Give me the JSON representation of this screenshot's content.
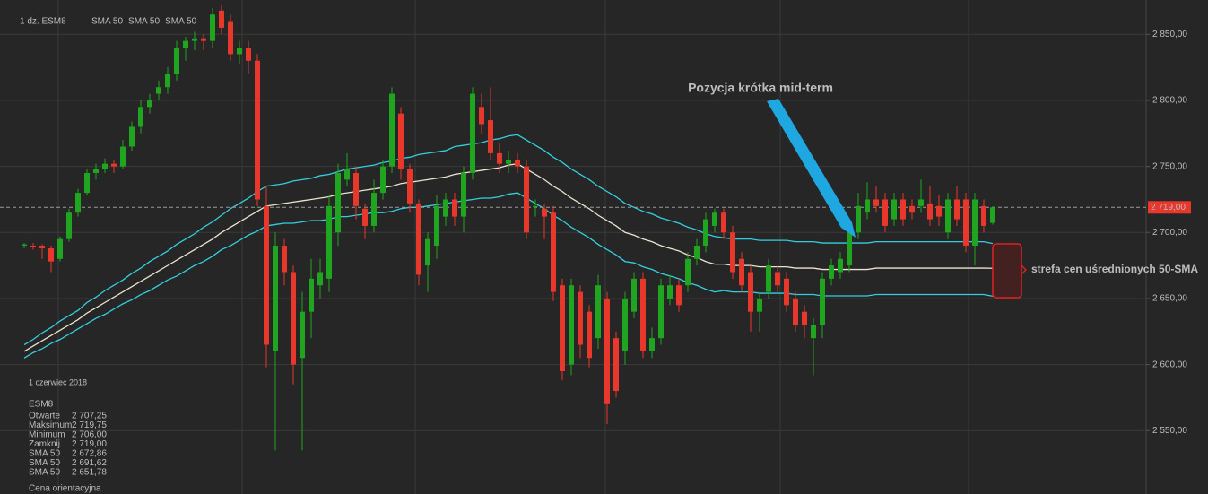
{
  "chart_data": {
    "type": "candlestick",
    "header": "1 dz.  ESM8",
    "categories": [
      null,
      null,
      null,
      null,
      null,
      null,
      null,
      null,
      null,
      null,
      null,
      null,
      null,
      null,
      null,
      null,
      null,
      null,
      null,
      null,
      null,
      null,
      null,
      null,
      null,
      null,
      null,
      null,
      null,
      null,
      null,
      null,
      null,
      null,
      null,
      null,
      null,
      null,
      null,
      null,
      null,
      null,
      null,
      null,
      null,
      null,
      null,
      null,
      null,
      null,
      null,
      null,
      null,
      null,
      null,
      null,
      null,
      null,
      null,
      null,
      null,
      null,
      null,
      null,
      null,
      null,
      null,
      null,
      null,
      null,
      null,
      null,
      null,
      null,
      null,
      null,
      null,
      null,
      null,
      null,
      null,
      null,
      null,
      null,
      null,
      null,
      null,
      null,
      null,
      null,
      null,
      null,
      null,
      null,
      null,
      null,
      null,
      null,
      null,
      null,
      null,
      null,
      null,
      null,
      null,
      null,
      null,
      null,
      null
    ],
    "open": [
      2690,
      2690,
      2690,
      2688,
      2680,
      2695,
      2715,
      2730,
      2745,
      2748,
      2752,
      2750,
      2765,
      2780,
      2795,
      2805,
      2810,
      2820,
      2840,
      2845,
      2847,
      2845,
      2868,
      2860,
      2835,
      2840,
      2830,
      2720,
      2610,
      2690,
      2670,
      2605,
      2640,
      2660,
      2665,
      2700,
      2740,
      2745,
      2718,
      2705,
      2730,
      2750,
      2790,
      2748,
      2722,
      2675,
      2690,
      2712,
      2725,
      2712,
      2745,
      2795,
      2785,
      2760,
      2752,
      2755,
      2750,
      2720,
      2718,
      2715,
      2660,
      2600,
      2655,
      2640,
      2620,
      2650,
      2620,
      2610,
      2640,
      2665,
      2610,
      2620,
      2650,
      2660,
      2660,
      2680,
      2690,
      2705,
      2715,
      2700,
      2680,
      2670,
      2640,
      2655,
      2670,
      2665,
      2650,
      2640,
      2620,
      2630,
      2665,
      2670,
      2675,
      2700,
      2715,
      2725,
      2725,
      2710,
      2725,
      2720,
      2720,
      2722,
      2720,
      2700,
      2725,
      2725,
      2690,
      2720,
      2707.25
    ],
    "high": [
      2692,
      2692,
      2691,
      2690,
      2697,
      2718,
      2733,
      2748,
      2752,
      2756,
      2755,
      2770,
      2784,
      2800,
      2805,
      2815,
      2825,
      2845,
      2848,
      2852,
      2850,
      2870,
      2872,
      2865,
      2845,
      2845,
      2835,
      2735,
      2700,
      2695,
      2675,
      2655,
      2680,
      2680,
      2728,
      2752,
      2760,
      2750,
      2722,
      2740,
      2755,
      2810,
      2795,
      2752,
      2725,
      2700,
      2728,
      2730,
      2730,
      2750,
      2810,
      2805,
      2810,
      2768,
      2762,
      2760,
      2755,
      2725,
      2722,
      2720,
      2665,
      2665,
      2660,
      2645,
      2668,
      2655,
      2625,
      2655,
      2670,
      2670,
      2628,
      2665,
      2668,
      2665,
      2685,
      2695,
      2715,
      2718,
      2718,
      2705,
      2685,
      2675,
      2655,
      2680,
      2675,
      2670,
      2655,
      2645,
      2635,
      2670,
      2680,
      2685,
      2705,
      2730,
      2738,
      2735,
      2730,
      2730,
      2730,
      2725,
      2740,
      2735,
      2728,
      2730,
      2735,
      2730,
      2730,
      2725,
      2719.75
    ],
    "low": [
      2688,
      2687,
      2680,
      2670,
      2678,
      2693,
      2712,
      2728,
      2740,
      2745,
      2745,
      2748,
      2762,
      2775,
      2790,
      2800,
      2805,
      2815,
      2830,
      2838,
      2838,
      2840,
      2850,
      2830,
      2828,
      2820,
      2720,
      2598,
      2535,
      2660,
      2585,
      2535,
      2620,
      2650,
      2655,
      2690,
      2735,
      2710,
      2695,
      2700,
      2725,
      2745,
      2740,
      2715,
      2660,
      2655,
      2680,
      2705,
      2705,
      2700,
      2740,
      2775,
      2755,
      2745,
      2745,
      2745,
      2695,
      2712,
      2695,
      2648,
      2588,
      2592,
      2605,
      2598,
      2612,
      2555,
      2575,
      2600,
      2635,
      2605,
      2605,
      2615,
      2645,
      2640,
      2655,
      2675,
      2685,
      2700,
      2695,
      2665,
      2655,
      2625,
      2625,
      2650,
      2655,
      2640,
      2625,
      2620,
      2592,
      2620,
      2660,
      2665,
      2670,
      2695,
      2710,
      2715,
      2700,
      2705,
      2705,
      2710,
      2715,
      2705,
      2705,
      2695,
      2705,
      2685,
      2675,
      2700,
      2706
    ],
    "close": [
      2691,
      2689,
      2688,
      2678,
      2695,
      2715,
      2730,
      2745,
      2748,
      2752,
      2750,
      2765,
      2780,
      2795,
      2800,
      2810,
      2820,
      2840,
      2845,
      2847,
      2845,
      2865,
      2855,
      2835,
      2840,
      2830,
      2725,
      2615,
      2690,
      2670,
      2600,
      2640,
      2665,
      2670,
      2720,
      2745,
      2748,
      2720,
      2705,
      2730,
      2750,
      2805,
      2748,
      2722,
      2668,
      2695,
      2720,
      2725,
      2712,
      2745,
      2805,
      2782,
      2760,
      2752,
      2755,
      2750,
      2700,
      2720,
      2712,
      2655,
      2595,
      2660,
      2615,
      2605,
      2660,
      2570,
      2580,
      2650,
      2665,
      2610,
      2620,
      2660,
      2660,
      2645,
      2680,
      2690,
      2710,
      2715,
      2700,
      2670,
      2660,
      2640,
      2650,
      2675,
      2660,
      2645,
      2630,
      2630,
      2630,
      2665,
      2675,
      2680,
      2700,
      2720,
      2725,
      2720,
      2705,
      2725,
      2710,
      2715,
      2725,
      2710,
      2712,
      2725,
      2710,
      2690,
      2725,
      2705,
      2719
    ],
    "color_up": "#1fa51f",
    "color_down": "#e8372b",
    "series": [
      {
        "name": "SMA 50",
        "color": "#ece3cf",
        "values": [
          2610,
          2614,
          2618,
          2622,
          2626,
          2630,
          2634,
          2639,
          2643,
          2647,
          2651,
          2655,
          2659,
          2663,
          2667,
          2671,
          2675,
          2679,
          2683,
          2687,
          2691,
          2695,
          2700,
          2704,
          2708,
          2712,
          2716,
          2720,
          2721,
          2722,
          2723,
          2724,
          2725,
          2726,
          2727,
          2729,
          2730,
          2731,
          2732,
          2733,
          2734,
          2735,
          2737,
          2738,
          2739,
          2740,
          2741,
          2742,
          2744,
          2745,
          2746,
          2747,
          2748,
          2749,
          2751,
          2752,
          2748,
          2744,
          2740,
          2735,
          2731,
          2726,
          2722,
          2718,
          2713,
          2709,
          2705,
          2700,
          2698,
          2695,
          2693,
          2690,
          2688,
          2686,
          2683,
          2681,
          2678,
          2676,
          2676,
          2675,
          2675,
          2675,
          2674,
          2674,
          2674,
          2674,
          2673,
          2673,
          2673,
          2672,
          2672,
          2672,
          2672,
          2672,
          2672,
          2673,
          2673,
          2673,
          2673,
          2673,
          2673,
          2673,
          2673,
          2673,
          2673,
          2673,
          2673,
          2673,
          2672.86
        ]
      },
      {
        "name": "SMA 50",
        "color": "#33cfe0",
        "values": [
          2615,
          2619,
          2624,
          2628,
          2633,
          2637,
          2641,
          2647,
          2651,
          2656,
          2660,
          2664,
          2669,
          2673,
          2678,
          2682,
          2686,
          2691,
          2695,
          2699,
          2704,
          2708,
          2713,
          2718,
          2722,
          2726,
          2731,
          2735,
          2736,
          2737,
          2739,
          2740,
          2741,
          2743,
          2744,
          2746,
          2748,
          2749,
          2750,
          2751,
          2753,
          2754,
          2756,
          2757,
          2759,
          2760,
          2761,
          2762,
          2765,
          2766,
          2767,
          2768,
          2770,
          2771,
          2773,
          2774,
          2770,
          2766,
          2762,
          2757,
          2753,
          2748,
          2744,
          2740,
          2735,
          2731,
          2727,
          2722,
          2719,
          2716,
          2714,
          2711,
          2709,
          2707,
          2704,
          2702,
          2699,
          2697,
          2696,
          2695,
          2695,
          2695,
          2694,
          2694,
          2694,
          2694,
          2693,
          2693,
          2693,
          2692,
          2692,
          2692,
          2692,
          2692,
          2692,
          2693,
          2693,
          2693,
          2693,
          2693,
          2693,
          2693,
          2693,
          2693,
          2693,
          2693,
          2693,
          2693,
          2691.62
        ]
      },
      {
        "name": "SMA 50",
        "color": "#33cfe0",
        "values": [
          2605,
          2609,
          2612,
          2616,
          2619,
          2623,
          2627,
          2631,
          2635,
          2638,
          2642,
          2646,
          2649,
          2653,
          2656,
          2660,
          2664,
          2667,
          2671,
          2675,
          2678,
          2682,
          2687,
          2690,
          2694,
          2698,
          2701,
          2705,
          2706,
          2707,
          2707,
          2708,
          2709,
          2709,
          2710,
          2712,
          2712,
          2713,
          2714,
          2715,
          2715,
          2716,
          2718,
          2719,
          2719,
          2720,
          2721,
          2722,
          2723,
          2724,
          2725,
          2726,
          2726,
          2727,
          2729,
          2730,
          2726,
          2722,
          2718,
          2713,
          2709,
          2704,
          2700,
          2696,
          2691,
          2687,
          2683,
          2678,
          2677,
          2674,
          2672,
          2669,
          2667,
          2665,
          2662,
          2660,
          2657,
          2655,
          2656,
          2655,
          2655,
          2655,
          2654,
          2654,
          2654,
          2654,
          2653,
          2653,
          2653,
          2652,
          2652,
          2652,
          2652,
          2652,
          2652,
          2653,
          2653,
          2653,
          2653,
          2653,
          2653,
          2653,
          2653,
          2653,
          2653,
          2653,
          2653,
          2653,
          2651.78
        ]
      }
    ],
    "last_price": {
      "value": 2719,
      "label": "2 719,00"
    },
    "ylim": [
      2502,
      2876
    ],
    "yticks": [
      {
        "value": 2550,
        "label": "2 550,00"
      },
      {
        "value": 2600,
        "label": "2 600,00"
      },
      {
        "value": 2650,
        "label": "2 650,00"
      },
      {
        "value": 2700,
        "label": "2 700,00"
      },
      {
        "value": 2750,
        "label": "2 750,00"
      },
      {
        "value": 2800,
        "label": "2 800,00"
      },
      {
        "value": 2850,
        "label": "2 850,00"
      }
    ],
    "grid": true,
    "annotations": {
      "arrow_text": "Pozycja krótka mid-term",
      "zone_text": "strefa cen uśrednionych 50-SMA"
    },
    "info_panel": {
      "date": "1 czerwiec 2018",
      "symbol": "ESM8",
      "rows": [
        [
          "Otwarte",
          "2 707,25"
        ],
        [
          "Maksimum",
          "2 719,75"
        ],
        [
          "Minimum",
          "2 706,00"
        ],
        [
          "Zamknij",
          "2 719,00"
        ],
        [
          "SMA 50",
          "2 672,86"
        ],
        [
          "SMA 50",
          "2 691,62"
        ],
        [
          "SMA 50",
          "2 651,78"
        ]
      ],
      "footer": "Cena orientacyjna"
    }
  }
}
